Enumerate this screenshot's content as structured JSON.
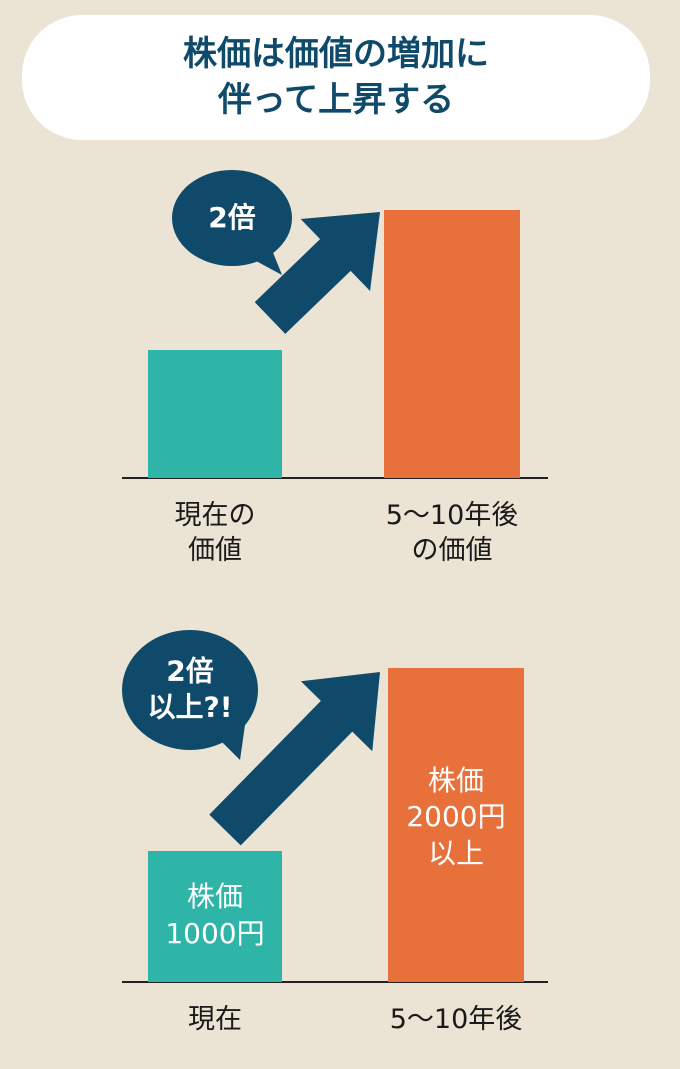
{
  "title": "株価は価値の増加に\n伴って上昇する",
  "chart_data": [
    {
      "type": "bar",
      "categories": [
        "現在の\n価値",
        "5〜10年後\nの価値"
      ],
      "values": [
        1,
        2.1
      ],
      "colors": [
        "#2fb5a8",
        "#e8703a"
      ],
      "ylim": [
        0,
        2.1
      ],
      "callout": "2倍"
    },
    {
      "type": "bar",
      "categories": [
        "現在",
        "5〜10年後"
      ],
      "values": [
        1000,
        2400
      ],
      "colors": [
        "#2fb5a8",
        "#e8703a"
      ],
      "ylim": [
        0,
        2400
      ],
      "callout": "2倍\n以上?!",
      "bar_texts": [
        "株価\n1000円",
        "株価\n2000円\n以上"
      ]
    }
  ]
}
